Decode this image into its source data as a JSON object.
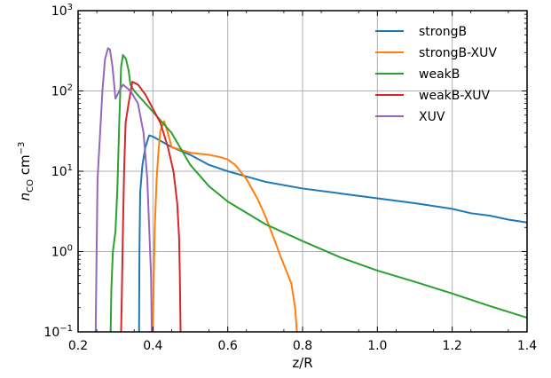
{
  "chart_data": {
    "type": "line",
    "xlabel": "z/R",
    "ylabel": "n_CO cm^-3",
    "xlim": [
      0.2,
      1.4
    ],
    "ylim": [
      0.1,
      1000
    ],
    "yscale": "log",
    "grid": true,
    "legend": "top-right",
    "x_ticks": [
      0.2,
      0.4,
      0.6,
      0.8,
      1.0,
      1.2,
      1.4
    ],
    "x_tick_labels": [
      "0.2",
      "0.4",
      "0.6",
      "0.8",
      "1.0",
      "1.2",
      "1.4"
    ],
    "y_ticks": [
      0.1,
      1,
      10,
      100,
      1000
    ],
    "y_tick_labels": [
      {
        "base": "10",
        "exp": "−1"
      },
      {
        "base": "10",
        "exp": "0"
      },
      {
        "base": "10",
        "exp": "1"
      },
      {
        "base": "10",
        "exp": "2"
      },
      {
        "base": "10",
        "exp": "3"
      }
    ],
    "series": [
      {
        "name": "strongB",
        "color": "#1f77b4",
        "points": [
          [
            0.363,
            0.1
          ],
          [
            0.364,
            1.0
          ],
          [
            0.366,
            5.5
          ],
          [
            0.372,
            12
          ],
          [
            0.38,
            20
          ],
          [
            0.39,
            28
          ],
          [
            0.4,
            27
          ],
          [
            0.42,
            24
          ],
          [
            0.45,
            20
          ],
          [
            0.5,
            16
          ],
          [
            0.55,
            12
          ],
          [
            0.6,
            10
          ],
          [
            0.65,
            8.6
          ],
          [
            0.7,
            7.4
          ],
          [
            0.8,
            6.1
          ],
          [
            0.9,
            5.3
          ],
          [
            1.0,
            4.6
          ],
          [
            1.1,
            4.0
          ],
          [
            1.2,
            3.4
          ],
          [
            1.25,
            3.0
          ],
          [
            1.3,
            2.8
          ],
          [
            1.35,
            2.5
          ],
          [
            1.4,
            2.3
          ]
        ]
      },
      {
        "name": "strongB-XUV",
        "color": "#ff7f0e",
        "points": [
          [
            0.4,
            0.1
          ],
          [
            0.402,
            0.4
          ],
          [
            0.405,
            2.0
          ],
          [
            0.41,
            8.0
          ],
          [
            0.415,
            18
          ],
          [
            0.42,
            32
          ],
          [
            0.43,
            42
          ],
          [
            0.44,
            30
          ],
          [
            0.45,
            20
          ],
          [
            0.5,
            17
          ],
          [
            0.55,
            16
          ],
          [
            0.58,
            15
          ],
          [
            0.6,
            14
          ],
          [
            0.62,
            12
          ],
          [
            0.65,
            8
          ],
          [
            0.68,
            4.5
          ],
          [
            0.7,
            2.8
          ],
          [
            0.72,
            1.6
          ],
          [
            0.74,
            0.9
          ],
          [
            0.755,
            0.6
          ],
          [
            0.77,
            0.4
          ],
          [
            0.78,
            0.2
          ],
          [
            0.785,
            0.1
          ]
        ]
      },
      {
        "name": "weakB",
        "color": "#2ca02c",
        "points": [
          [
            0.287,
            0.1
          ],
          [
            0.289,
            0.35
          ],
          [
            0.293,
            1.0
          ],
          [
            0.3,
            1.8
          ],
          [
            0.305,
            6
          ],
          [
            0.31,
            40
          ],
          [
            0.315,
            200
          ],
          [
            0.32,
            280
          ],
          [
            0.328,
            250
          ],
          [
            0.335,
            180
          ],
          [
            0.34,
            120
          ],
          [
            0.35,
            100
          ],
          [
            0.38,
            70
          ],
          [
            0.4,
            55
          ],
          [
            0.45,
            30
          ],
          [
            0.5,
            12
          ],
          [
            0.55,
            6.5
          ],
          [
            0.6,
            4.2
          ],
          [
            0.7,
            2.2
          ],
          [
            0.8,
            1.35
          ],
          [
            0.9,
            0.85
          ],
          [
            1.0,
            0.58
          ],
          [
            1.1,
            0.42
          ],
          [
            1.2,
            0.3
          ],
          [
            1.3,
            0.21
          ],
          [
            1.4,
            0.15
          ]
        ]
      },
      {
        "name": "weakB-XUV",
        "color": "#d62728",
        "points": [
          [
            0.315,
            0.1
          ],
          [
            0.317,
            0.3
          ],
          [
            0.32,
            2.0
          ],
          [
            0.323,
            10
          ],
          [
            0.327,
            40
          ],
          [
            0.335,
            70
          ],
          [
            0.345,
            130
          ],
          [
            0.36,
            120
          ],
          [
            0.38,
            90
          ],
          [
            0.4,
            60
          ],
          [
            0.42,
            40
          ],
          [
            0.44,
            20
          ],
          [
            0.455,
            10
          ],
          [
            0.465,
            4
          ],
          [
            0.47,
            1.5
          ],
          [
            0.472,
            0.5
          ],
          [
            0.474,
            0.1
          ]
        ]
      },
      {
        "name": "XUV",
        "color": "#9467bd",
        "points": [
          [
            0.247,
            0.1
          ],
          [
            0.249,
            0.6
          ],
          [
            0.252,
            8
          ],
          [
            0.258,
            25
          ],
          [
            0.265,
            100
          ],
          [
            0.272,
            250
          ],
          [
            0.28,
            340
          ],
          [
            0.285,
            330
          ],
          [
            0.292,
            200
          ],
          [
            0.3,
            80
          ],
          [
            0.31,
            100
          ],
          [
            0.32,
            120
          ],
          [
            0.34,
            100
          ],
          [
            0.36,
            70
          ],
          [
            0.375,
            30
          ],
          [
            0.385,
            8
          ],
          [
            0.39,
            2
          ],
          [
            0.395,
            0.5
          ],
          [
            0.397,
            0.1
          ]
        ]
      }
    ]
  }
}
